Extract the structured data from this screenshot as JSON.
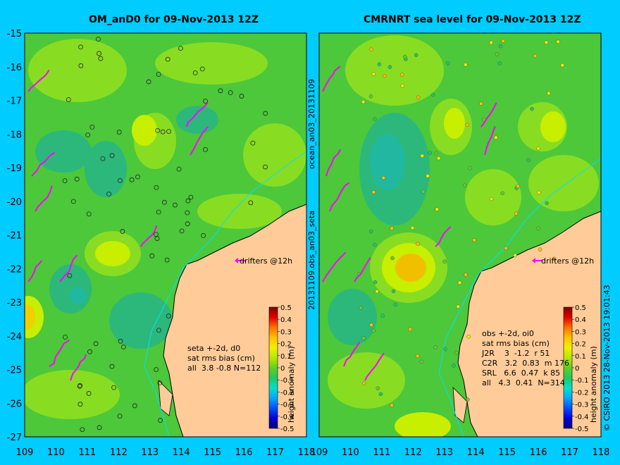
{
  "left_panel": {
    "title": "OM_anD0 for 09-Nov-2013 12Z",
    "x_ticks": [
      "109",
      "110",
      "111",
      "112",
      "113",
      "114",
      "115",
      "116",
      "117",
      "118"
    ],
    "y_ticks": [
      "-15",
      "-16",
      "-17",
      "-18",
      "-19",
      "-20",
      "-21",
      "-22",
      "-23",
      "-24",
      "-25",
      "-26",
      "-27"
    ],
    "drifters_label": "drifters @12h",
    "stats": [
      "seta +-2d, d0",
      "sat rms bias (cm)",
      "all  3.8 -0.8 N=112"
    ],
    "colorbar_label": "height anomaly (m)"
  },
  "right_panel": {
    "title": "CMRNRT sea level  for 09-Nov-2013 12Z",
    "x_ticks": [
      "109",
      "110",
      "111",
      "112",
      "113",
      "114",
      "115",
      "116",
      "117",
      "118"
    ],
    "drifters_label": "drifters @12h",
    "stats": [
      "obs +-2d, oi0",
      "sat rms bias (cm)",
      "J2R    3  -1.2  r 51",
      "C2R   3.2  0.83  m 176",
      "SRL   6.6  0.47  k 85",
      "all   4.3  0.41  N=314"
    ],
    "colorbar_label": "height anomaly (m)"
  },
  "colorbar_ticks": [
    "0.5",
    "0.4",
    "0.3",
    "0.2",
    "0.1",
    "0",
    "-0.1",
    "-0.2",
    "-0.3",
    "-0.4",
    "-0.5"
  ],
  "colorbar_colors": [
    "#00007f",
    "#0000d9",
    "#0050ff",
    "#00a8ff",
    "#00e0d0",
    "#20c860",
    "#60d020",
    "#b8e800",
    "#f0f000",
    "#ffc000",
    "#ff7000",
    "#e00000",
    "#800000"
  ],
  "side_label_top": "ocean_an03_20131109",
  "side_label_mid": "20131109.obs_an03_seta",
  "copyright": "© CSIRO 2013   28-Nov-2013 19:01:43",
  "colors": {
    "background": "#00ccff",
    "land": "#ffcc99",
    "sea": "#5ed43a",
    "drifter": "#ff00ff"
  }
}
